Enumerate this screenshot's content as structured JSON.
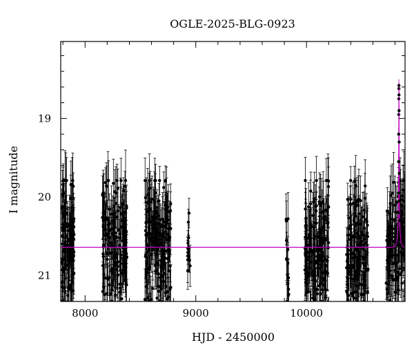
{
  "chart_data": {
    "type": "scatter",
    "title": "OGLE-2025-BLG-0923",
    "xlabel": "HJD - 2450000",
    "ylabel": "I magnitude",
    "xlim": [
      7780,
      10890
    ],
    "ylim": [
      21.33,
      18.02
    ],
    "y_inverted": true,
    "xticks": [
      8000,
      9000,
      10000
    ],
    "yticks": [
      19,
      20,
      21
    ],
    "grid": false,
    "legend": "none",
    "colors": {
      "points": "#000000",
      "model": "#c000c0",
      "frame": "#000000"
    },
    "baseline_mag": 20.64,
    "model": {
      "baseline": 20.64,
      "peak_time": 10835,
      "peak_mag": 18.6,
      "x": [
        7780,
        10780,
        10800,
        10815,
        10825,
        10830,
        10833,
        10835,
        10837,
        10840,
        10845,
        10855,
        10870,
        10890
      ],
      "y": [
        20.64,
        20.64,
        20.63,
        20.58,
        20.42,
        20.15,
        19.6,
        18.6,
        19.6,
        20.15,
        20.42,
        20.58,
        20.63,
        20.64
      ]
    },
    "seasons": [
      {
        "start": 7790,
        "end": 7900,
        "n": 120,
        "sigma": 0.42,
        "err": 0.28
      },
      {
        "start": 8155,
        "end": 8380,
        "n": 170,
        "sigma": 0.42,
        "err": 0.28
      },
      {
        "start": 8540,
        "end": 8775,
        "n": 170,
        "sigma": 0.42,
        "err": 0.28
      },
      {
        "start": 8925,
        "end": 8950,
        "n": 14,
        "sigma": 0.33,
        "err": 0.22
      },
      {
        "start": 9815,
        "end": 9840,
        "n": 14,
        "sigma": 0.38,
        "err": 0.26
      },
      {
        "start": 9985,
        "end": 10200,
        "n": 160,
        "sigma": 0.42,
        "err": 0.28
      },
      {
        "start": 10360,
        "end": 10560,
        "n": 140,
        "sigma": 0.42,
        "err": 0.28
      },
      {
        "start": 10720,
        "end": 10890,
        "n": 130,
        "sigma": 0.42,
        "err": 0.28
      }
    ],
    "peak_points": {
      "x": [
        10830,
        10831,
        10832,
        10833,
        10833.5,
        10834,
        10834.5,
        10835,
        10835.5,
        10836,
        10837,
        10838,
        10839,
        10840
      ],
      "y": [
        20.2,
        19.95,
        19.55,
        19.2,
        18.95,
        18.75,
        18.62,
        18.58,
        18.7,
        18.9,
        19.3,
        19.7,
        20.05,
        20.3
      ]
    }
  }
}
